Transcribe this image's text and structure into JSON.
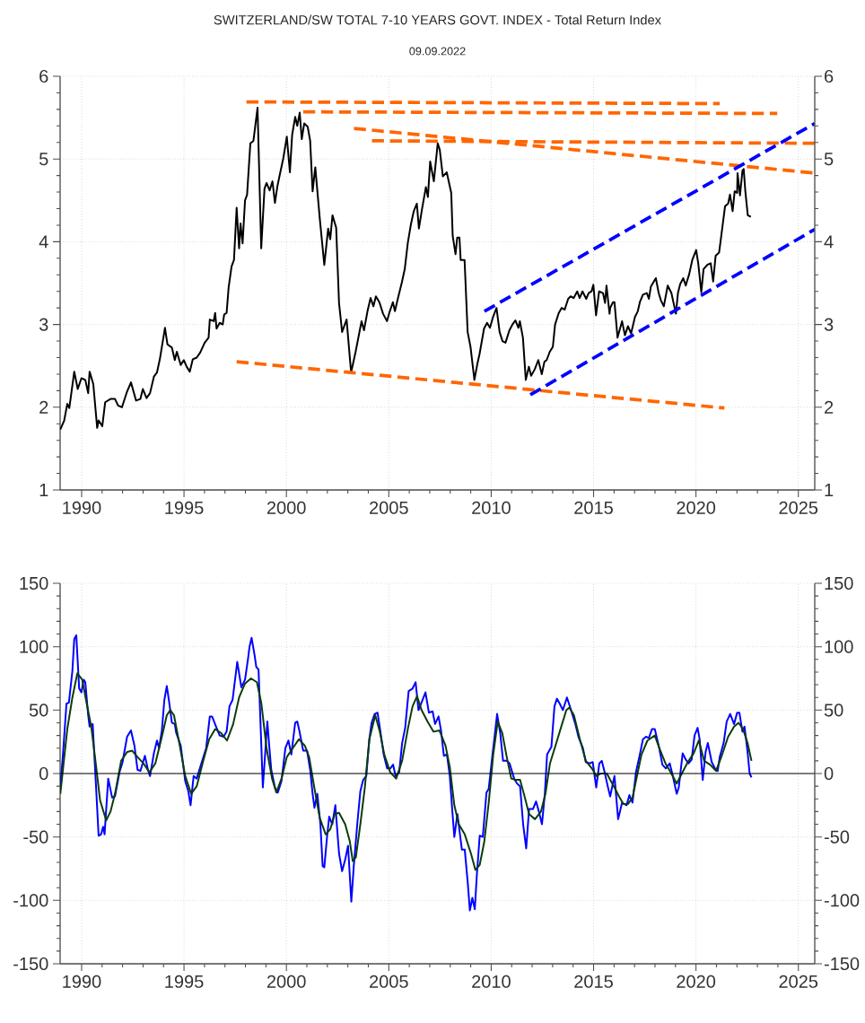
{
  "chart_data": [
    {
      "type": "line",
      "title": "SWITZERLAND/SW TOTAL 7-10 YEARS GOVT. INDEX - Total Return Index",
      "subtitle": "09.09.2022",
      "xlim": [
        1988.95,
        2025.8
      ],
      "xticks": [
        1990,
        1995,
        2000,
        2005,
        2010,
        2015,
        2020,
        2025
      ],
      "ylim": [
        1,
        6
      ],
      "yticks": [
        1,
        2,
        3,
        4,
        5,
        6
      ],
      "y2lim": [
        1,
        6
      ],
      "y2ticks": [
        1,
        2,
        3,
        4,
        5,
        6
      ],
      "grid": true,
      "series": [
        {
          "color": "#000000",
          "x": [
            1988.96,
            1989.15,
            1989.3,
            1989.4,
            1989.64,
            1989.81,
            1989.99,
            1990.18,
            1990.32,
            1990.39,
            1990.57,
            1990.76,
            1990.83,
            1991.01,
            1991.15,
            1991.41,
            1991.63,
            1991.78,
            1991.97,
            1992.22,
            1992.41,
            1992.66,
            1992.87,
            1992.99,
            1993.17,
            1993.34,
            1993.53,
            1993.68,
            1993.82,
            1994.07,
            1994.19,
            1994.41,
            1994.55,
            1994.65,
            1994.84,
            1994.99,
            1995.13,
            1995.28,
            1995.43,
            1995.62,
            1995.79,
            1996.01,
            1996.2,
            1996.26,
            1996.45,
            1996.52,
            1996.59,
            1996.74,
            1996.89,
            1996.96,
            1997.08,
            1997.18,
            1997.32,
            1997.44,
            1997.57,
            1997.69,
            1997.76,
            1997.86,
            1997.98,
            1998.08,
            1998.24,
            1998.39,
            1998.59,
            1998.77,
            1998.93,
            1999.03,
            1999.18,
            1999.32,
            1999.44,
            1999.56,
            1999.66,
            1999.85,
            2000.02,
            2000.17,
            2000.28,
            2000.43,
            2000.53,
            2000.65,
            2000.75,
            2000.87,
            2001.04,
            2001.16,
            2001.28,
            2001.41,
            2001.63,
            2001.85,
            2002.04,
            2002.14,
            2002.25,
            2002.43,
            2002.57,
            2002.72,
            2002.94,
            2003.09,
            2003.16,
            2003.38,
            2003.67,
            2003.79,
            2003.96,
            2004.11,
            2004.25,
            2004.37,
            2004.54,
            2004.72,
            2004.91,
            2005.05,
            2005.2,
            2005.3,
            2005.45,
            2005.64,
            2005.78,
            2005.93,
            2006.08,
            2006.22,
            2006.37,
            2006.47,
            2006.62,
            2006.81,
            2006.91,
            2007.02,
            2007.2,
            2007.39,
            2007.49,
            2007.64,
            2007.83,
            2008.05,
            2008.12,
            2008.26,
            2008.34,
            2008.45,
            2008.51,
            2008.7,
            2008.85,
            2008.99,
            2009.18,
            2009.33,
            2009.43,
            2009.65,
            2009.8,
            2009.94,
            2010.09,
            2010.26,
            2010.41,
            2010.55,
            2010.7,
            2010.89,
            2011.04,
            2011.18,
            2011.33,
            2011.4,
            2011.55,
            2011.69,
            2011.84,
            2011.95,
            2012.13,
            2012.3,
            2012.47,
            2012.6,
            2012.71,
            2012.86,
            2013.01,
            2013.12,
            2013.3,
            2013.44,
            2013.59,
            2013.76,
            2013.88,
            2014.03,
            2014.2,
            2014.32,
            2014.46,
            2014.64,
            2014.76,
            2014.9,
            2014.99,
            2015.12,
            2015.27,
            2015.46,
            2015.56,
            2015.63,
            2015.78,
            2015.81,
            2015.95,
            2016.02,
            2016.17,
            2016.39,
            2016.53,
            2016.68,
            2016.83,
            2017.02,
            2017.16,
            2017.26,
            2017.41,
            2017.6,
            2017.7,
            2017.8,
            2018.04,
            2018.18,
            2018.29,
            2018.43,
            2018.62,
            2018.8,
            2019.02,
            2019.12,
            2019.23,
            2019.38,
            2019.5,
            2019.67,
            2019.82,
            2020.01,
            2020.11,
            2020.26,
            2020.37,
            2020.55,
            2020.72,
            2020.84,
            2020.96,
            2021.13,
            2021.25,
            2021.42,
            2021.57,
            2021.66,
            2021.79,
            2021.89,
            2022.01,
            2022.03,
            2022.15,
            2022.27,
            2022.33,
            2022.41,
            2022.53,
            2022.68
          ],
          "values": [
            1.73,
            1.84,
            2.04,
            1.99,
            2.43,
            2.22,
            2.35,
            2.33,
            2.17,
            2.43,
            2.28,
            1.75,
            1.84,
            1.77,
            2.06,
            2.1,
            2.1,
            2.02,
            2.0,
            2.19,
            2.3,
            2.08,
            2.1,
            2.22,
            2.11,
            2.17,
            2.37,
            2.42,
            2.58,
            2.96,
            2.76,
            2.72,
            2.57,
            2.67,
            2.51,
            2.57,
            2.49,
            2.43,
            2.58,
            2.6,
            2.66,
            2.78,
            2.84,
            3.06,
            3.04,
            3.14,
            2.95,
            3.02,
            3.0,
            3.12,
            3.14,
            3.45,
            3.7,
            3.78,
            4.41,
            3.92,
            4.22,
            3.98,
            4.5,
            4.57,
            5.19,
            5.22,
            5.62,
            3.92,
            4.64,
            4.71,
            4.62,
            4.73,
            4.47,
            4.67,
            4.79,
            5.01,
            5.27,
            4.84,
            5.29,
            5.51,
            5.4,
            5.56,
            5.24,
            5.43,
            5.39,
            5.22,
            4.61,
            4.9,
            4.28,
            3.72,
            4.16,
            4.03,
            4.32,
            4.17,
            3.26,
            2.91,
            3.06,
            2.62,
            2.42,
            2.67,
            3.04,
            2.93,
            3.16,
            3.32,
            3.22,
            3.34,
            3.27,
            3.13,
            3.04,
            3.16,
            3.27,
            3.16,
            3.32,
            3.51,
            3.67,
            3.99,
            4.21,
            4.37,
            4.46,
            4.16,
            4.39,
            4.66,
            4.54,
            4.97,
            4.73,
            5.19,
            5.11,
            4.79,
            4.84,
            4.59,
            4.07,
            3.85,
            4.05,
            4.05,
            3.78,
            3.78,
            2.91,
            2.73,
            2.33,
            2.53,
            2.64,
            2.95,
            3.02,
            2.96,
            3.09,
            3.2,
            2.91,
            2.8,
            2.78,
            2.93,
            3.0,
            3.05,
            2.96,
            3.04,
            2.84,
            2.33,
            2.49,
            2.38,
            2.46,
            2.57,
            2.4,
            2.55,
            2.57,
            2.67,
            2.73,
            3.0,
            3.14,
            3.2,
            3.18,
            3.31,
            3.34,
            3.32,
            3.4,
            3.32,
            3.4,
            3.31,
            3.38,
            3.4,
            3.48,
            3.11,
            3.4,
            3.38,
            3.26,
            3.47,
            3.13,
            3.2,
            3.27,
            3.27,
            2.84,
            3.04,
            2.87,
            2.98,
            2.89,
            3.09,
            3.16,
            3.27,
            3.36,
            3.38,
            3.31,
            3.46,
            3.56,
            3.38,
            3.29,
            3.22,
            3.47,
            3.38,
            3.13,
            3.38,
            3.49,
            3.56,
            3.47,
            3.61,
            3.78,
            3.9,
            3.74,
            3.39,
            3.67,
            3.72,
            3.74,
            3.52,
            3.83,
            3.87,
            4.1,
            4.43,
            4.46,
            4.57,
            4.37,
            4.61,
            4.59,
            4.83,
            4.56,
            4.86,
            4.88,
            4.61,
            4.32,
            4.3
          ]
        },
        {
          "type": "line",
          "line_style": "dashed",
          "color": "#ff6600",
          "x": [
            1998.05,
            2021.16
          ],
          "values": [
            5.69,
            5.67
          ]
        },
        {
          "type": "line",
          "line_style": "dashed",
          "color": "#ff6600",
          "x": [
            2000.82,
            2023.97
          ],
          "values": [
            5.57,
            5.55
          ]
        },
        {
          "type": "line",
          "line_style": "dashed",
          "color": "#ff6600",
          "x": [
            2004.18,
            2025.8
          ],
          "values": [
            5.22,
            5.19
          ]
        },
        {
          "type": "line",
          "line_style": "dashed",
          "color": "#ff6600",
          "x": [
            2003.3,
            2025.8
          ],
          "values": [
            5.37,
            4.83
          ]
        },
        {
          "type": "line",
          "line_style": "dashed",
          "color": "#ff6600",
          "x": [
            1997.57,
            2021.39
          ],
          "values": [
            2.55,
            1.99
          ]
        },
        {
          "type": "line",
          "line_style": "dashed",
          "color": "#0000ff",
          "x": [
            2009.67,
            2025.8
          ],
          "values": [
            3.16,
            5.43
          ]
        },
        {
          "type": "line",
          "line_style": "dashed",
          "color": "#0000ff",
          "x": [
            2011.91,
            2025.8
          ],
          "values": [
            2.15,
            4.15
          ]
        }
      ]
    },
    {
      "type": "line",
      "xlim": [
        1988.95,
        2025.8
      ],
      "xticks": [
        1990,
        1995,
        2000,
        2005,
        2010,
        2015,
        2020,
        2025
      ],
      "ylim": [
        -150,
        150
      ],
      "yticks": [
        -150,
        -100,
        -50,
        0,
        50,
        100,
        150
      ],
      "y2lim": [
        -150,
        150
      ],
      "y2ticks": [
        -150,
        -100,
        -50,
        0,
        50,
        100,
        150
      ],
      "grid": true,
      "ref_lines": [
        {
          "axis": "y",
          "value": 0,
          "color": "#000000"
        }
      ],
      "series": [
        {
          "color": "#0000ff",
          "x": [
            1988.96,
            1989.08,
            1989.26,
            1989.38,
            1989.55,
            1989.64,
            1989.74,
            1989.88,
            1989.99,
            1990.1,
            1990.18,
            1990.32,
            1990.39,
            1990.54,
            1990.69,
            1990.83,
            1990.95,
            1991.05,
            1991.12,
            1991.3,
            1991.49,
            1991.63,
            1991.85,
            1992.0,
            1992.22,
            1992.41,
            1992.58,
            1992.73,
            1992.87,
            1993.09,
            1993.24,
            1993.34,
            1993.53,
            1993.68,
            1993.78,
            1993.92,
            1994.04,
            1994.16,
            1994.26,
            1994.41,
            1994.55,
            1994.62,
            1994.84,
            1995.06,
            1995.21,
            1995.32,
            1995.47,
            1995.62,
            1995.79,
            1996.08,
            1996.26,
            1996.37,
            1996.59,
            1996.74,
            1996.93,
            1997.08,
            1997.22,
            1997.37,
            1997.47,
            1997.6,
            1997.8,
            1997.98,
            1998.13,
            1998.2,
            1998.3,
            1998.45,
            1998.53,
            1998.64,
            1998.85,
            1999.07,
            1999.15,
            1999.26,
            1999.44,
            1999.58,
            1999.76,
            1999.95,
            2000.1,
            2000.24,
            2000.43,
            2000.53,
            2000.63,
            2000.82,
            2001.01,
            2001.16,
            2001.28,
            2001.37,
            2001.51,
            2001.66,
            2001.77,
            2001.85,
            2001.99,
            2002.09,
            2002.24,
            2002.39,
            2002.57,
            2002.72,
            2002.87,
            2003.01,
            2003.17,
            2003.29,
            2003.46,
            2003.61,
            2003.75,
            2003.9,
            2004.05,
            2004.16,
            2004.31,
            2004.45,
            2004.6,
            2004.75,
            2004.92,
            2005.07,
            2005.21,
            2005.33,
            2005.51,
            2005.65,
            2005.8,
            2005.97,
            2006.16,
            2006.31,
            2006.45,
            2006.6,
            2006.79,
            2006.96,
            2007.14,
            2007.26,
            2007.43,
            2007.55,
            2007.69,
            2007.84,
            2007.98,
            2008.1,
            2008.2,
            2008.35,
            2008.57,
            2008.71,
            2008.86,
            2008.96,
            2009.08,
            2009.2,
            2009.3,
            2009.44,
            2009.59,
            2009.77,
            2009.88,
            2010.03,
            2010.29,
            2010.44,
            2010.58,
            2010.76,
            2010.9,
            2011.12,
            2011.27,
            2011.41,
            2011.56,
            2011.71,
            2011.85,
            2012.04,
            2012.19,
            2012.33,
            2012.48,
            2012.62,
            2012.73,
            2012.94,
            2013.09,
            2013.21,
            2013.35,
            2013.5,
            2013.7,
            2013.94,
            2014.11,
            2014.26,
            2014.48,
            2014.62,
            2014.81,
            2014.96,
            2015.13,
            2015.28,
            2015.4,
            2015.54,
            2015.69,
            2015.81,
            2016.02,
            2016.2,
            2016.39,
            2016.61,
            2016.75,
            2016.9,
            2017.07,
            2017.26,
            2017.41,
            2017.56,
            2017.7,
            2017.85,
            2017.99,
            2018.18,
            2018.36,
            2018.53,
            2018.72,
            2018.87,
            2019.06,
            2019.16,
            2019.35,
            2019.5,
            2019.64,
            2019.79,
            2019.93,
            2020.08,
            2020.18,
            2020.33,
            2020.47,
            2020.58,
            2020.77,
            2020.96,
            2021.06,
            2021.16,
            2021.35,
            2021.5,
            2021.67,
            2021.86,
            2022.01,
            2022.12,
            2022.27,
            2022.37,
            2022.52,
            2022.62,
            2022.71
          ],
          "values": [
            -10,
            13,
            55,
            56,
            81,
            106,
            109,
            67,
            64,
            74,
            72,
            46,
            37,
            39,
            -6,
            -49,
            -48,
            -42,
            -48,
            -4,
            -19,
            -18,
            1,
            9,
            29,
            34,
            22,
            3,
            2,
            14,
            3,
            -2,
            16,
            26,
            20,
            34,
            58,
            69,
            58,
            40,
            39,
            32,
            22,
            -6,
            -14,
            -25,
            -2,
            -4,
            5,
            20,
            45,
            45,
            36,
            30,
            29,
            33,
            53,
            58,
            71,
            88,
            68,
            74,
            91,
            100,
            107,
            93,
            84,
            82,
            -11,
            41,
            24,
            3,
            -11,
            -15,
            -6,
            20,
            26,
            15,
            40,
            41,
            34,
            18,
            18,
            3,
            -16,
            -27,
            -16,
            -40,
            -73,
            -74,
            -49,
            -34,
            -40,
            -25,
            -63,
            -77,
            -68,
            -57,
            -101,
            -73,
            -40,
            -14,
            -5,
            -2,
            27,
            40,
            47,
            48,
            32,
            15,
            4,
            4,
            7,
            -2,
            1,
            24,
            36,
            65,
            67,
            72,
            50,
            56,
            64,
            48,
            49,
            39,
            45,
            34,
            14,
            15,
            -2,
            -29,
            -50,
            -32,
            -60,
            -60,
            -87,
            -108,
            -98,
            -107,
            -80,
            -49,
            -50,
            -15,
            -12,
            10,
            47,
            32,
            10,
            10,
            8,
            -4,
            -8,
            -10,
            -40,
            -59,
            -28,
            -28,
            -22,
            -30,
            -40,
            -16,
            15,
            21,
            53,
            59,
            55,
            50,
            60,
            48,
            39,
            29,
            20,
            9,
            8,
            9,
            -11,
            8,
            10,
            1,
            -10,
            -18,
            -2,
            -36,
            -23,
            -25,
            -17,
            -23,
            1,
            15,
            27,
            29,
            28,
            35,
            35,
            22,
            7,
            4,
            8,
            -2,
            -16,
            -11,
            16,
            11,
            8,
            11,
            30,
            36,
            27,
            -5,
            17,
            24,
            9,
            3,
            2,
            13,
            24,
            41,
            47,
            39,
            48,
            48,
            33,
            37,
            17,
            0,
            -3
          ]
        },
        {
          "color": "#0a3d0a",
          "x": [
            1988.96,
            1989.3,
            1989.55,
            1989.79,
            1990.03,
            1990.25,
            1990.47,
            1990.69,
            1990.9,
            1991.2,
            1991.41,
            1991.63,
            1991.93,
            1992.22,
            1992.47,
            1992.73,
            1993.02,
            1993.31,
            1993.6,
            1993.89,
            1994.16,
            1994.33,
            1994.51,
            1994.77,
            1995.06,
            1995.35,
            1995.62,
            1995.94,
            1996.23,
            1996.52,
            1996.81,
            1997.1,
            1997.4,
            1997.69,
            1997.98,
            1998.27,
            1998.56,
            1998.78,
            1999.03,
            1999.3,
            1999.51,
            1999.76,
            2000.02,
            2000.31,
            2000.61,
            2000.9,
            2001.11,
            2001.34,
            2001.63,
            2001.92,
            2002.14,
            2002.36,
            2002.57,
            2002.87,
            2003.09,
            2003.24,
            2003.39,
            2003.61,
            2003.83,
            2004.05,
            2004.34,
            2004.56,
            2004.78,
            2005.07,
            2005.36,
            2005.65,
            2005.94,
            2006.16,
            2006.38,
            2006.6,
            2006.89,
            2007.18,
            2007.47,
            2007.77,
            2007.98,
            2008.2,
            2008.42,
            2008.71,
            2009.01,
            2009.23,
            2009.44,
            2009.66,
            2009.88,
            2010.1,
            2010.32,
            2010.54,
            2010.76,
            2010.98,
            2011.19,
            2011.41,
            2011.63,
            2011.85,
            2012.14,
            2012.43,
            2012.65,
            2012.87,
            2013.16,
            2013.46,
            2013.67,
            2013.82,
            2014.04,
            2014.33,
            2014.62,
            2014.92,
            2015.13,
            2015.35,
            2015.65,
            2015.81,
            2016.02,
            2016.24,
            2016.46,
            2016.68,
            2016.9,
            2017.12,
            2017.34,
            2017.63,
            2017.99,
            2018.21,
            2018.51,
            2018.8,
            2019.06,
            2019.31,
            2019.6,
            2019.89,
            2020.14,
            2020.4,
            2020.69,
            2020.98,
            2021.28,
            2021.57,
            2021.86,
            2022.08,
            2022.3,
            2022.52,
            2022.71
          ],
          "values": [
            -16,
            35,
            60,
            79,
            74,
            55,
            37,
            8,
            -21,
            -37,
            -30,
            -16,
            10,
            17,
            18,
            13,
            8,
            1,
            8,
            27,
            46,
            50,
            46,
            24,
            -2,
            -16,
            -10,
            10,
            27,
            35,
            32,
            26,
            39,
            60,
            71,
            75,
            72,
            55,
            20,
            -4,
            -15,
            -4,
            13,
            20,
            27,
            22,
            13,
            -9,
            -35,
            -48,
            -44,
            -32,
            -31,
            -40,
            -53,
            -69,
            -66,
            -40,
            -11,
            27,
            46,
            33,
            15,
            1,
            -4,
            10,
            36,
            53,
            61,
            50,
            41,
            33,
            34,
            22,
            5,
            -25,
            -40,
            -48,
            -63,
            -76,
            -72,
            -54,
            -23,
            15,
            41,
            32,
            13,
            -4,
            -5,
            -5,
            -18,
            -32,
            -36,
            -30,
            -16,
            8,
            23,
            39,
            50,
            52,
            46,
            27,
            10,
            4,
            -2,
            0,
            0,
            -5,
            -11,
            -18,
            -24,
            -24,
            -19,
            -2,
            15,
            26,
            30,
            20,
            8,
            0,
            -8,
            0,
            9,
            16,
            26,
            10,
            7,
            2,
            15,
            29,
            37,
            40,
            35,
            24,
            10
          ]
        }
      ]
    }
  ]
}
